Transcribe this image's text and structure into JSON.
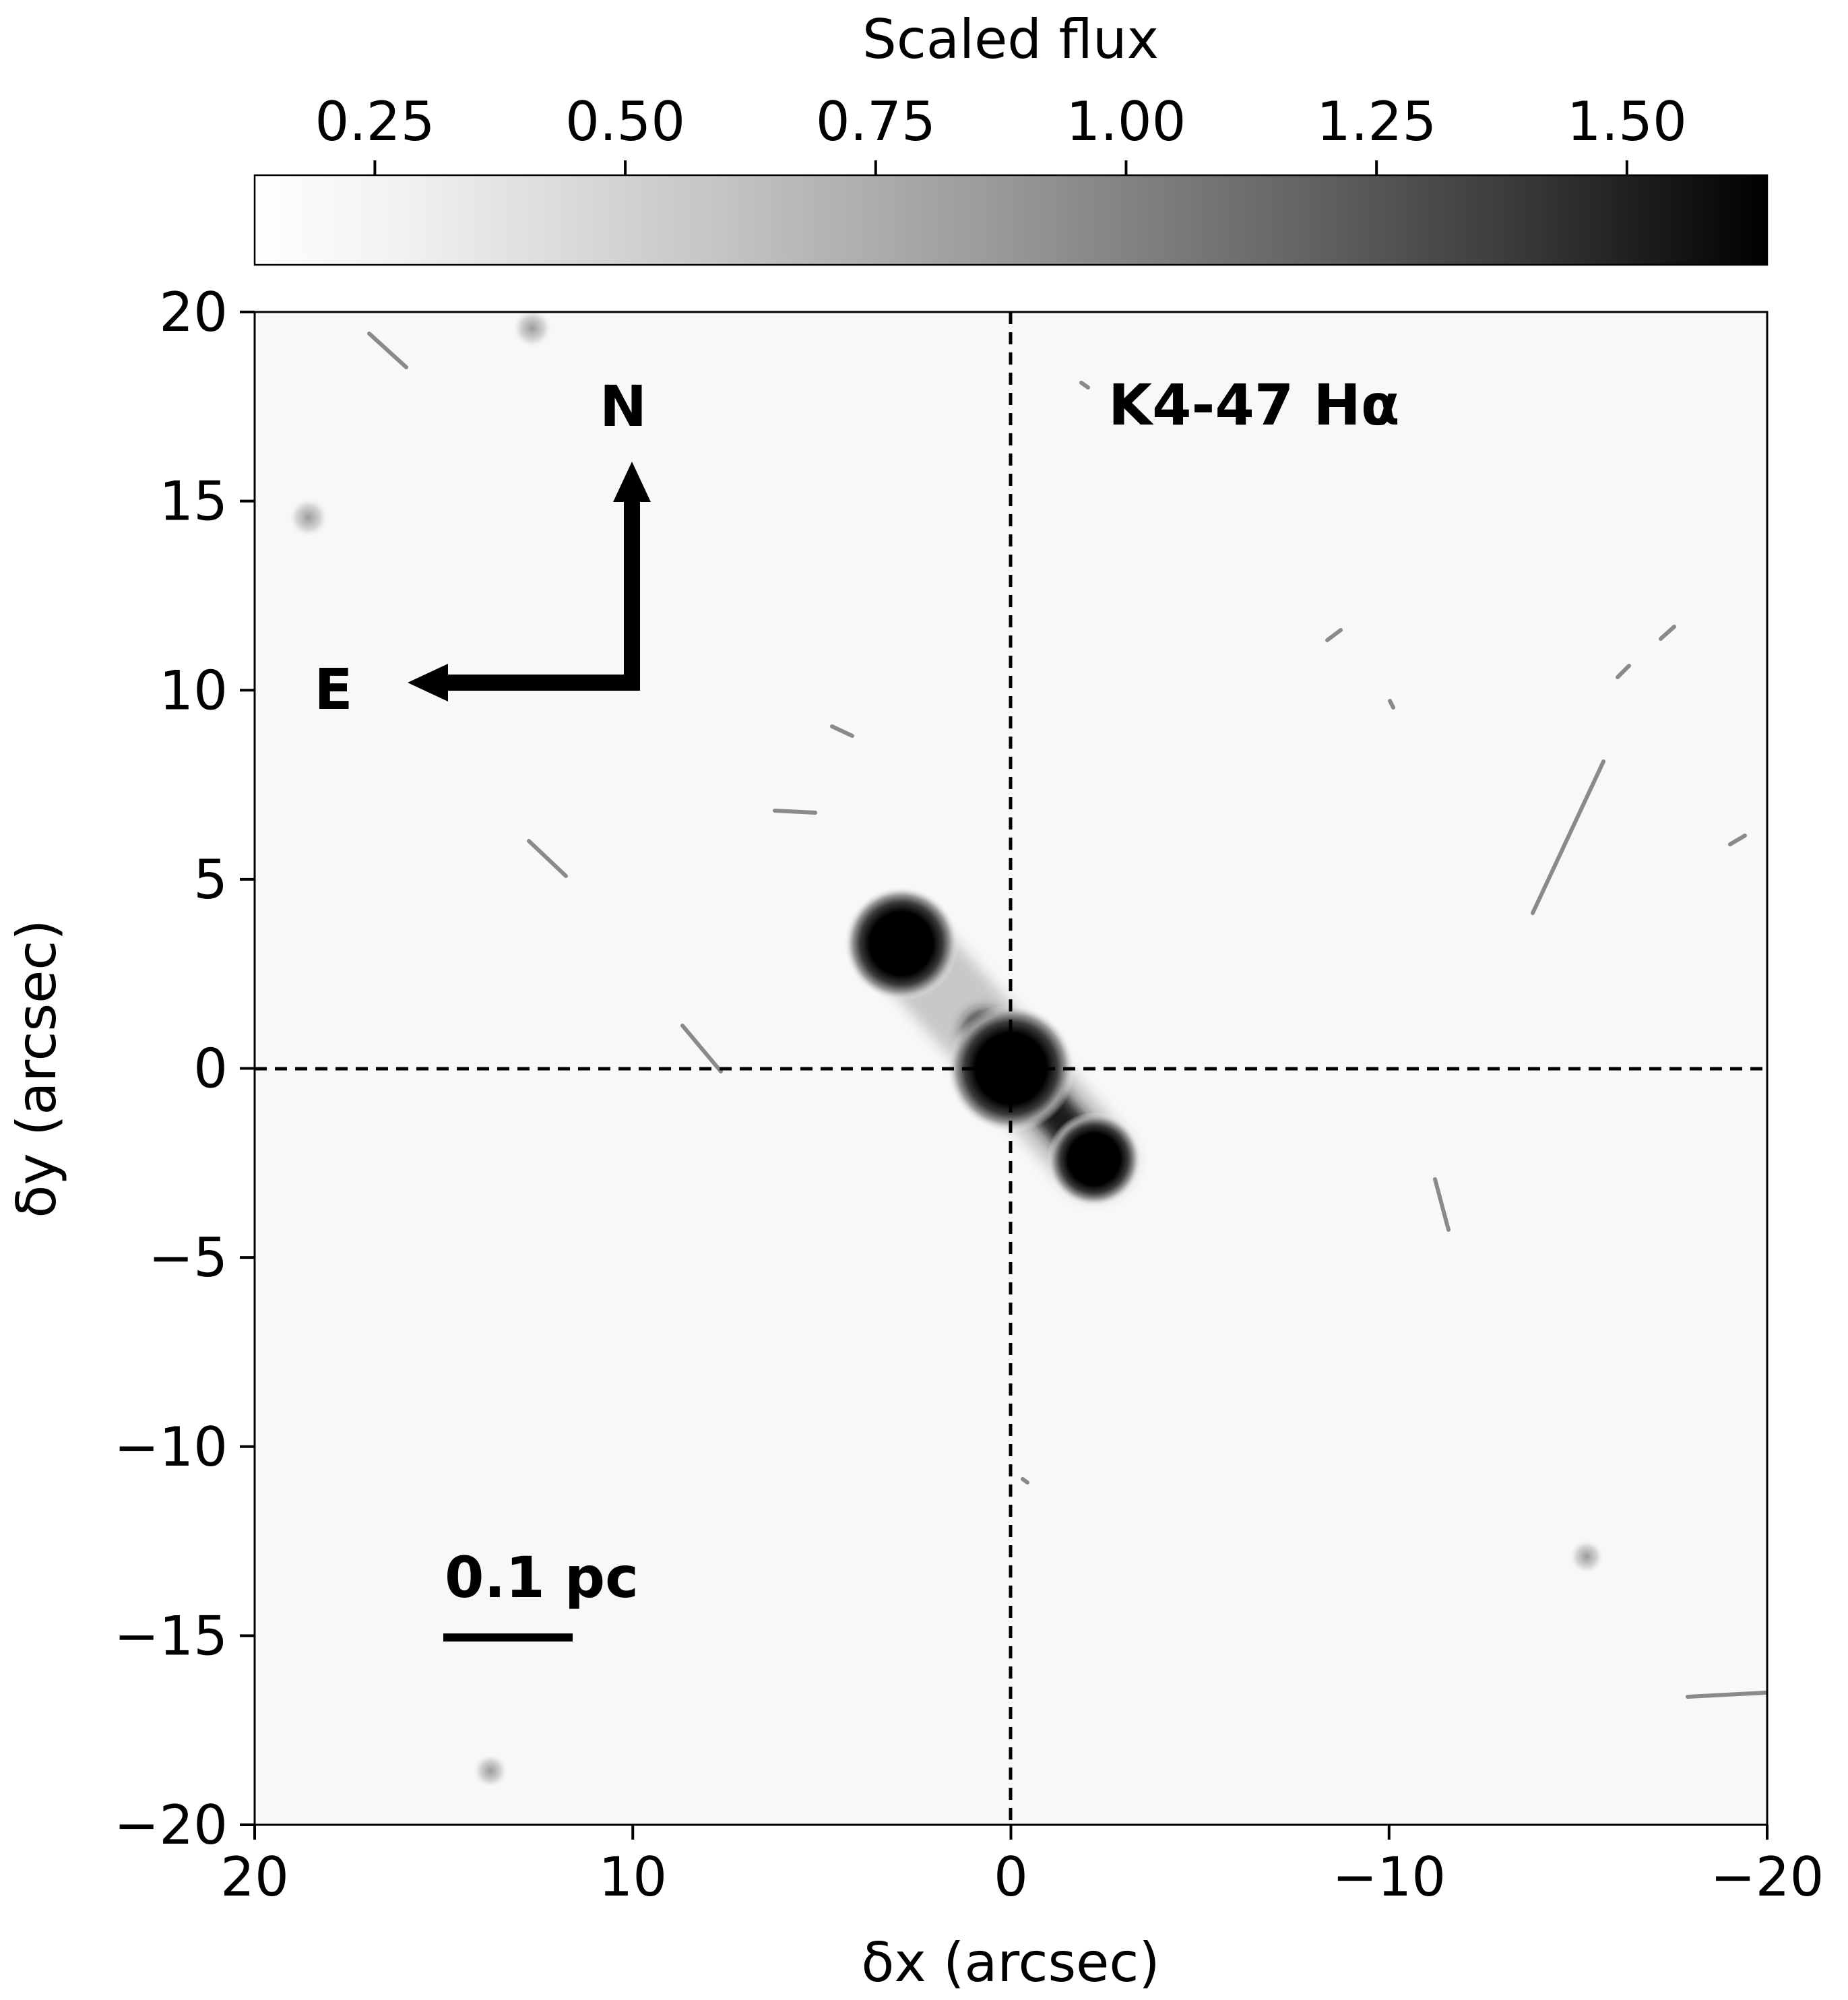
{
  "colorbar": {
    "label": "Scaled flux",
    "ticks": [
      "0.25",
      "0.50",
      "0.75",
      "1.00",
      "1.25",
      "1.50"
    ],
    "tick_values": [
      0.25,
      0.5,
      0.75,
      1.0,
      1.25,
      1.5
    ],
    "range": [
      0.13,
      1.64
    ],
    "colormap": "gray_r"
  },
  "image": {
    "object_label": "K4-47 Hα",
    "compass": {
      "north": "N",
      "east": "E"
    },
    "scale_bar": "0.1 pc",
    "crosshair_style": "dashed"
  },
  "axes": {
    "xlabel": "δx (arcsec)",
    "ylabel": "δy (arcsec)",
    "xlim": [
      20,
      -20
    ],
    "ylim": [
      -20,
      20
    ],
    "xticks": [
      "20",
      "10",
      "0",
      "−10",
      "−20"
    ],
    "xtick_values": [
      20,
      10,
      0,
      -10,
      -20
    ],
    "yticks": [
      "20",
      "15",
      "10",
      "5",
      "0",
      "−5",
      "−10",
      "−15",
      "−20"
    ],
    "ytick_values": [
      20,
      15,
      10,
      5,
      0,
      -5,
      -10,
      -15,
      -20
    ]
  },
  "sources": [
    {
      "name": "central-knot",
      "x": 0.0,
      "y": 0.0
    },
    {
      "name": "ne-knot",
      "x": 2.9,
      "y": 3.3
    },
    {
      "name": "sw-knot",
      "x": -2.2,
      "y": -2.4
    }
  ]
}
